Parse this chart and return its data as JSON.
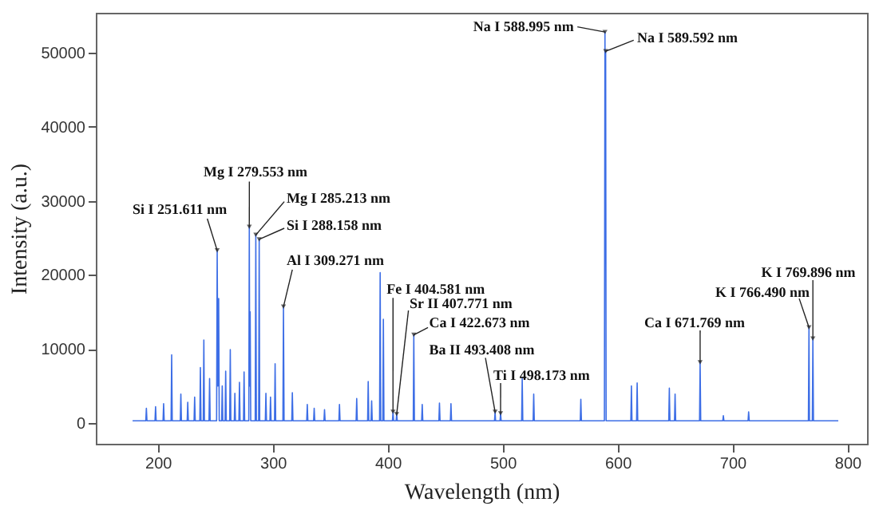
{
  "chart_data": {
    "type": "line",
    "xlabel": "Wavelength  (nm)",
    "ylabel": "Intensity (a.u.)",
    "xlim": [
      146,
      817
    ],
    "ylim": [
      -2800,
      55400
    ],
    "xticks": [
      200,
      300,
      400,
      500,
      600,
      700,
      800
    ],
    "yticks": [
      0,
      10000,
      20000,
      30000,
      40000,
      50000
    ],
    "grid": false,
    "marker": "none",
    "line_style": "solid",
    "series": [
      {
        "color": "#3d6ee6",
        "x": [
          178,
          189.5,
          190,
          190.5,
          197.5,
          198,
          198.5,
          204.5,
          205,
          205.5,
          211.5,
          212,
          212.5,
          219.5,
          220,
          220.5,
          225.5,
          226,
          226.5,
          231.5,
          232,
          232.5,
          236.5,
          237,
          237.5,
          239.5,
          240,
          240.5,
          244.5,
          245,
          245.5,
          251.1,
          251.611,
          252.2,
          252.9,
          253.4,
          255.5,
          256,
          256.5,
          258.5,
          259,
          259.5,
          262.5,
          263,
          263.5,
          266.5,
          267,
          267.5,
          270.5,
          271,
          271.5,
          274.5,
          275,
          275.5,
          279.1,
          279.553,
          279.9,
          280.3,
          280.8,
          284.7,
          285.213,
          285.7,
          287.7,
          288.158,
          288.6,
          293.5,
          294,
          294.5,
          297.5,
          298,
          298.5,
          301.5,
          302,
          302.5,
          308.8,
          309.271,
          309.8,
          316.5,
          317,
          317.5,
          329.5,
          330,
          330.5,
          335.5,
          336,
          336.5,
          344.5,
          345,
          345.5,
          357.5,
          358,
          358.5,
          372.5,
          373,
          373.5,
          382.5,
          383,
          383.5,
          385.5,
          386,
          386.5,
          392.9,
          393.4,
          393.9,
          395.7,
          396.2,
          396.7,
          404.1,
          404.581,
          405.1,
          407.3,
          407.771,
          408.3,
          422.2,
          422.673,
          423.2,
          429.5,
          430,
          430.5,
          444.5,
          445,
          445.5,
          454.5,
          455,
          455.5,
          492.9,
          493.408,
          493.8,
          497.7,
          498.173,
          498.7,
          516.5,
          517,
          517.5,
          526.5,
          527,
          527.5,
          567.5,
          568,
          568.5,
          588.5,
          588.995,
          589.3,
          589.592,
          590,
          611.5,
          612,
          612.5,
          616.5,
          617,
          617.5,
          644.5,
          645,
          645.5,
          649.5,
          650,
          650.5,
          671.3,
          671.769,
          672.3,
          691.5,
          692,
          692.5,
          713.5,
          714,
          714.5,
          766,
          766.49,
          766.9,
          769.4,
          769.896,
          770.4,
          792
        ],
        "values": [
          300,
          300,
          2000,
          300,
          300,
          2200,
          300,
          300,
          2600,
          300,
          300,
          9200,
          300,
          300,
          3900,
          300,
          300,
          2800,
          300,
          300,
          3500,
          300,
          300,
          7500,
          300,
          300,
          11200,
          300,
          300,
          6000,
          300,
          300,
          23300,
          5000,
          16800,
          300,
          300,
          5000,
          300,
          300,
          7000,
          300,
          300,
          9900,
          300,
          300,
          4000,
          300,
          300,
          5500,
          300,
          300,
          6900,
          300,
          300,
          26500,
          5000,
          15000,
          300,
          300,
          25400,
          300,
          300,
          24800,
          300,
          300,
          4000,
          300,
          300,
          3500,
          300,
          300,
          8000,
          300,
          300,
          15700,
          300,
          300,
          4100,
          300,
          300,
          2500,
          300,
          300,
          2000,
          300,
          300,
          1800,
          300,
          300,
          2500,
          300,
          300,
          3300,
          300,
          300,
          5600,
          300,
          300,
          3000,
          300,
          300,
          20300,
          300,
          300,
          14000,
          300,
          300,
          1500,
          300,
          300,
          1200,
          300,
          300,
          11900,
          300,
          300,
          2500,
          300,
          300,
          2700,
          300,
          300,
          2600,
          300,
          300,
          1500,
          300,
          300,
          1300,
          300,
          300,
          6000,
          300,
          300,
          3900,
          300,
          300,
          3200,
          300,
          300,
          52800,
          30000,
          50200,
          300,
          300,
          5000,
          300,
          300,
          5400,
          300,
          300,
          4700,
          300,
          300,
          3900,
          300,
          300,
          8200,
          300,
          300,
          1000,
          300,
          300,
          1500,
          300,
          300,
          12900,
          300,
          300,
          11400,
          300,
          300
        ]
      }
    ],
    "annotations": [
      {
        "text": "Si I  251.611 nm",
        "x": 251.611,
        "y": 23300
      },
      {
        "text": "Mg I  279.553 nm",
        "x": 279.553,
        "y": 26500
      },
      {
        "text": "Mg I  285.213 nm",
        "x": 285.213,
        "y": 25400
      },
      {
        "text": "Si I  288.158 nm",
        "x": 288.158,
        "y": 24800
      },
      {
        "text": "Al I  309.271 nm",
        "x": 309.271,
        "y": 15700
      },
      {
        "text": "Fe I  404.581 nm",
        "x": 404.581,
        "y": 1500
      },
      {
        "text": "Sr II  407.771 nm",
        "x": 407.771,
        "y": 1200
      },
      {
        "text": "Ca I  422.673 nm",
        "x": 422.673,
        "y": 11900
      },
      {
        "text": "Ba II  493.408 nm",
        "x": 493.408,
        "y": 1500
      },
      {
        "text": "Ti I  498.173 nm",
        "x": 498.173,
        "y": 1300
      },
      {
        "text": "Na I  588.995 nm",
        "x": 588.995,
        "y": 52800
      },
      {
        "text": "Na I  589.592 nm",
        "x": 589.592,
        "y": 50200
      },
      {
        "text": "Ca I  671.769 nm",
        "x": 671.769,
        "y": 8200
      },
      {
        "text": "K I  766.490 nm",
        "x": 766.49,
        "y": 12900
      },
      {
        "text": "K I  769.896 nm",
        "x": 769.896,
        "y": 11400
      }
    ]
  }
}
